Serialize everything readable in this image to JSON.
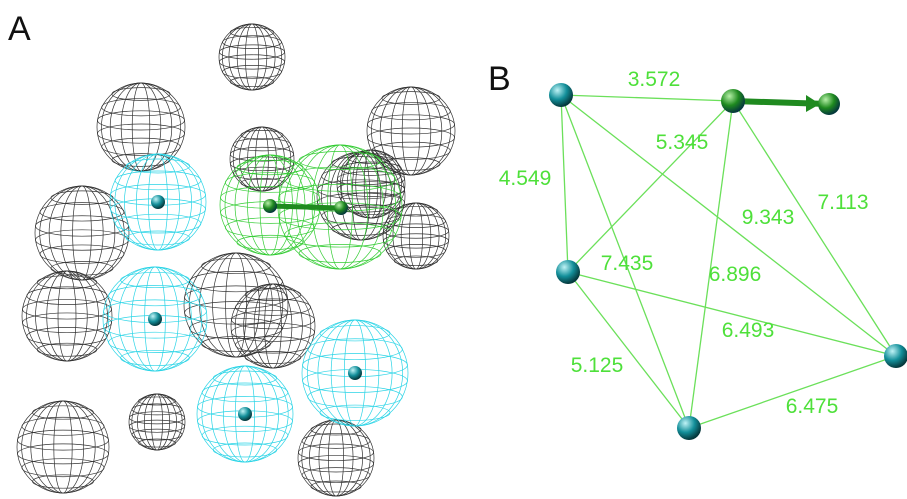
{
  "panels": {
    "a": {
      "label": "A"
    },
    "b": {
      "label": "B"
    }
  },
  "colors": {
    "wire_gray": "#333333",
    "wire_cyan": "#2ad4e6",
    "wire_green": "#33cc33",
    "atom_teal": "#138f9a",
    "atom_green": "#1f8a1f",
    "edge_green": "#6be05a",
    "distance_text": "#4ee03a"
  },
  "panel_a": {
    "spheres": [
      {
        "role": "excluded-volume",
        "color": "gray"
      },
      {
        "role": "excluded-volume",
        "color": "gray"
      },
      {
        "role": "excluded-volume",
        "color": "gray"
      },
      {
        "role": "excluded-volume",
        "color": "gray"
      },
      {
        "role": "excluded-volume",
        "color": "gray"
      },
      {
        "role": "excluded-volume",
        "color": "gray"
      },
      {
        "role": "excluded-volume",
        "color": "gray"
      },
      {
        "role": "excluded-volume",
        "color": "gray"
      },
      {
        "role": "excluded-volume",
        "color": "gray"
      },
      {
        "role": "excluded-volume",
        "color": "gray"
      },
      {
        "role": "excluded-volume",
        "color": "gray"
      },
      {
        "role": "excluded-volume",
        "color": "gray"
      },
      {
        "role": "excluded-volume",
        "color": "gray"
      },
      {
        "role": "excluded-volume",
        "color": "gray"
      },
      {
        "role": "feature",
        "color": "cyan"
      },
      {
        "role": "feature",
        "color": "cyan"
      },
      {
        "role": "feature",
        "color": "cyan"
      },
      {
        "role": "feature",
        "color": "cyan"
      },
      {
        "role": "feature",
        "color": "green"
      },
      {
        "role": "feature",
        "color": "green"
      }
    ]
  },
  "panel_b": {
    "nodes": [
      {
        "id": "n1",
        "color": "teal"
      },
      {
        "id": "n2",
        "color": "green",
        "vector": true
      },
      {
        "id": "n3",
        "color": "teal"
      },
      {
        "id": "n4",
        "color": "teal"
      },
      {
        "id": "n5",
        "color": "teal"
      }
    ],
    "edges": [
      {
        "from": "n1",
        "to": "n2",
        "distance": "3.572"
      },
      {
        "from": "n1",
        "to": "n3",
        "distance": "4.549"
      },
      {
        "from": "n3",
        "to": "n2",
        "distance": "5.345"
      },
      {
        "from": "n2",
        "to": "n4",
        "distance": "7.113"
      },
      {
        "from": "n1",
        "to": "n4",
        "distance": "9.343"
      },
      {
        "from": "n1",
        "to": "n5",
        "distance": "7.435"
      },
      {
        "from": "n2",
        "to": "n5",
        "distance": "6.896"
      },
      {
        "from": "n3",
        "to": "n4",
        "distance": "6.493"
      },
      {
        "from": "n3",
        "to": "n5",
        "distance": "5.125"
      },
      {
        "from": "n5",
        "to": "n4",
        "distance": "6.475"
      }
    ]
  }
}
